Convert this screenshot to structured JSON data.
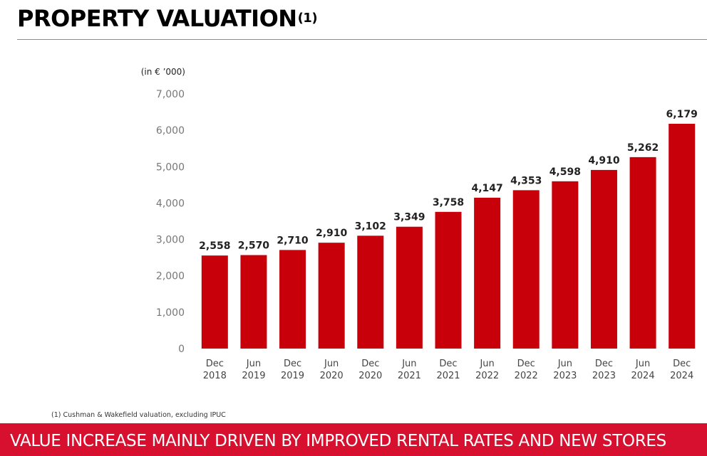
{
  "header": {
    "title": "PROPERTY VALUATION",
    "title_footnote_marker": "(1)"
  },
  "chart_data": {
    "type": "bar",
    "unit_label": "(in € ’000)",
    "categories": [
      [
        "Dec",
        "2018"
      ],
      [
        "Jun",
        "2019"
      ],
      [
        "Dec",
        "2019"
      ],
      [
        "Jun",
        "2020"
      ],
      [
        "Dec",
        "2020"
      ],
      [
        "Jun",
        "2021"
      ],
      [
        "Dec",
        "2021"
      ],
      [
        "Jun",
        "2022"
      ],
      [
        "Dec",
        "2022"
      ],
      [
        "Jun",
        "2023"
      ],
      [
        "Dec",
        "2023"
      ],
      [
        "Jun",
        "2024"
      ],
      [
        "Dec",
        "2024"
      ]
    ],
    "values": [
      2558,
      2570,
      2710,
      2910,
      3102,
      3349,
      3758,
      4147,
      4353,
      4598,
      4910,
      5262,
      6179
    ],
    "value_labels": [
      "2,558",
      "2,570",
      "2,710",
      "2,910",
      "3,102",
      "3,349",
      "3,758",
      "4,147",
      "4,353",
      "4,598",
      "4,910",
      "5,262",
      "6,179"
    ],
    "ylim": [
      0,
      7000
    ],
    "y_ticks": [
      0,
      1000,
      2000,
      3000,
      4000,
      5000,
      6000,
      7000
    ],
    "y_tick_labels": [
      "0",
      "1,000",
      "2,000",
      "3,000",
      "4,000",
      "5,000",
      "6,000",
      "7,000"
    ],
    "grid": false,
    "bar_color": "#c8000a"
  },
  "footnote": "(1) Cushman & Wakefield valuation, excluding IPUC",
  "banner": {
    "text": "VALUE INCREASE MAINLY DRIVEN BY IMPROVED RENTAL RATES AND NEW STORES",
    "color": "#d7102f"
  }
}
